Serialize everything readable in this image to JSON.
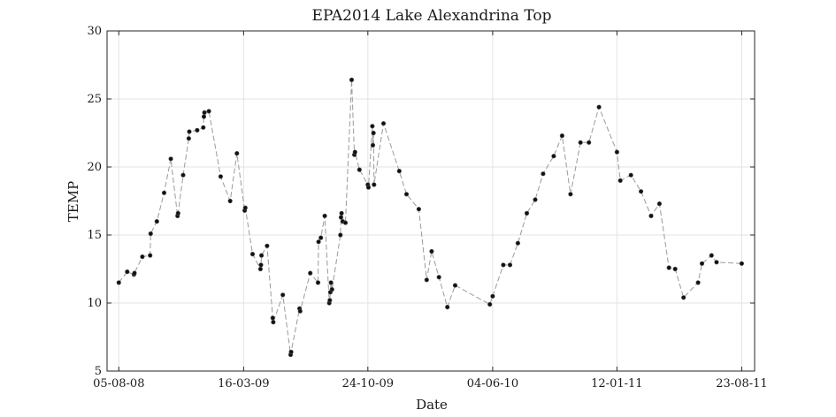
{
  "chart_data": {
    "type": "line",
    "title": "EPA2014 Lake Alexandrina Top",
    "xlabel": "Date",
    "ylabel": "TEMP",
    "ylim": [
      5,
      30
    ],
    "xlim": [
      "2008-07-15",
      "2011-09-15"
    ],
    "yticks": [
      5,
      10,
      15,
      20,
      25,
      30
    ],
    "xticks": [
      {
        "date": "2008-08-05",
        "label": "05-08-08"
      },
      {
        "date": "2009-03-16",
        "label": "16-03-09"
      },
      {
        "date": "2009-10-24",
        "label": "24-10-09"
      },
      {
        "date": "2010-06-04",
        "label": "04-06-10"
      },
      {
        "date": "2011-01-12",
        "label": "12-01-11"
      },
      {
        "date": "2011-08-23",
        "label": "23-08-11"
      }
    ],
    "grid": true,
    "colors": {
      "line": "#9a9a9a",
      "marker": "#111111"
    },
    "series": [
      {
        "x": [
          "2008-08-05",
          "2008-08-20",
          "2008-09-01",
          "2008-09-02",
          "2008-09-16",
          "2008-09-30",
          "2008-10-01",
          "2008-10-12",
          "2008-10-25",
          "2008-11-06",
          "2008-11-18",
          "2008-11-19",
          "2008-11-28",
          "2008-12-08",
          "2008-12-09",
          "2008-12-23",
          "2009-01-03",
          "2009-01-04",
          "2009-01-05",
          "2009-01-13",
          "2009-02-03",
          "2009-02-20",
          "2009-03-04",
          "2009-03-18",
          "2009-03-19",
          "2009-04-01",
          "2009-04-15",
          "2009-04-16",
          "2009-04-17",
          "2009-04-27",
          "2009-05-07",
          "2009-05-08",
          "2009-05-25",
          "2009-06-08",
          "2009-06-09",
          "2009-06-24",
          "2009-06-25",
          "2009-07-13",
          "2009-07-27",
          "2009-07-28",
          "2009-08-01",
          "2009-08-08",
          "2009-08-16",
          "2009-08-17",
          "2009-08-18",
          "2009-08-19",
          "2009-08-21",
          "2009-09-05",
          "2009-09-06",
          "2009-09-07",
          "2009-09-09",
          "2009-09-14",
          "2009-09-25",
          "2009-09-30",
          "2009-10-01",
          "2009-10-09",
          "2009-10-24",
          "2009-10-25",
          "2009-11-01",
          "2009-11-02",
          "2009-11-03",
          "2009-11-04",
          "2009-11-21",
          "2009-12-19",
          "2010-01-01",
          "2010-01-23",
          "2010-02-06",
          "2010-02-15",
          "2010-02-28",
          "2010-03-15",
          "2010-03-29",
          "2010-05-30",
          "2010-06-04",
          "2010-06-23",
          "2010-07-05",
          "2010-07-19",
          "2010-08-04",
          "2010-08-19",
          "2010-09-02",
          "2010-09-21",
          "2010-10-06",
          "2010-10-21",
          "2010-11-08",
          "2010-11-23",
          "2010-12-11",
          "2011-01-12",
          "2011-01-18",
          "2011-02-06",
          "2011-02-24",
          "2011-03-14",
          "2011-03-29",
          "2011-04-15",
          "2011-04-26",
          "2011-05-11",
          "2011-06-06",
          "2011-06-13",
          "2011-06-30",
          "2011-07-09",
          "2011-08-23"
        ],
        "y": [
          11.5,
          12.3,
          12.1,
          12.2,
          13.4,
          13.5,
          15.1,
          16.0,
          18.1,
          20.6,
          16.4,
          16.6,
          19.4,
          22.1,
          22.6,
          22.7,
          22.9,
          23.7,
          24.0,
          24.1,
          19.3,
          17.5,
          21.0,
          16.8,
          17.0,
          13.6,
          12.5,
          12.8,
          13.5,
          14.2,
          8.9,
          8.6,
          10.6,
          6.2,
          6.4,
          9.6,
          9.4,
          12.2,
          11.5,
          14.5,
          14.8,
          16.4,
          10.0,
          10.2,
          10.8,
          11.5,
          11.0,
          15.0,
          16.3,
          16.6,
          16.0,
          15.9,
          26.4,
          20.9,
          21.1,
          19.8,
          18.7,
          18.5,
          23.0,
          21.6,
          22.5,
          18.7,
          23.2,
          19.7,
          18.0,
          16.9,
          11.7,
          13.8,
          11.9,
          9.7,
          11.3,
          9.9,
          10.5,
          12.8,
          12.8,
          14.4,
          16.6,
          17.6,
          19.5,
          20.8,
          22.3,
          18.0,
          21.8,
          21.8,
          24.4,
          21.1,
          19.0,
          19.4,
          18.2,
          16.4,
          17.3,
          12.6,
          12.5,
          10.4,
          11.5,
          12.9,
          13.5,
          13.0,
          12.9
        ]
      }
    ]
  }
}
